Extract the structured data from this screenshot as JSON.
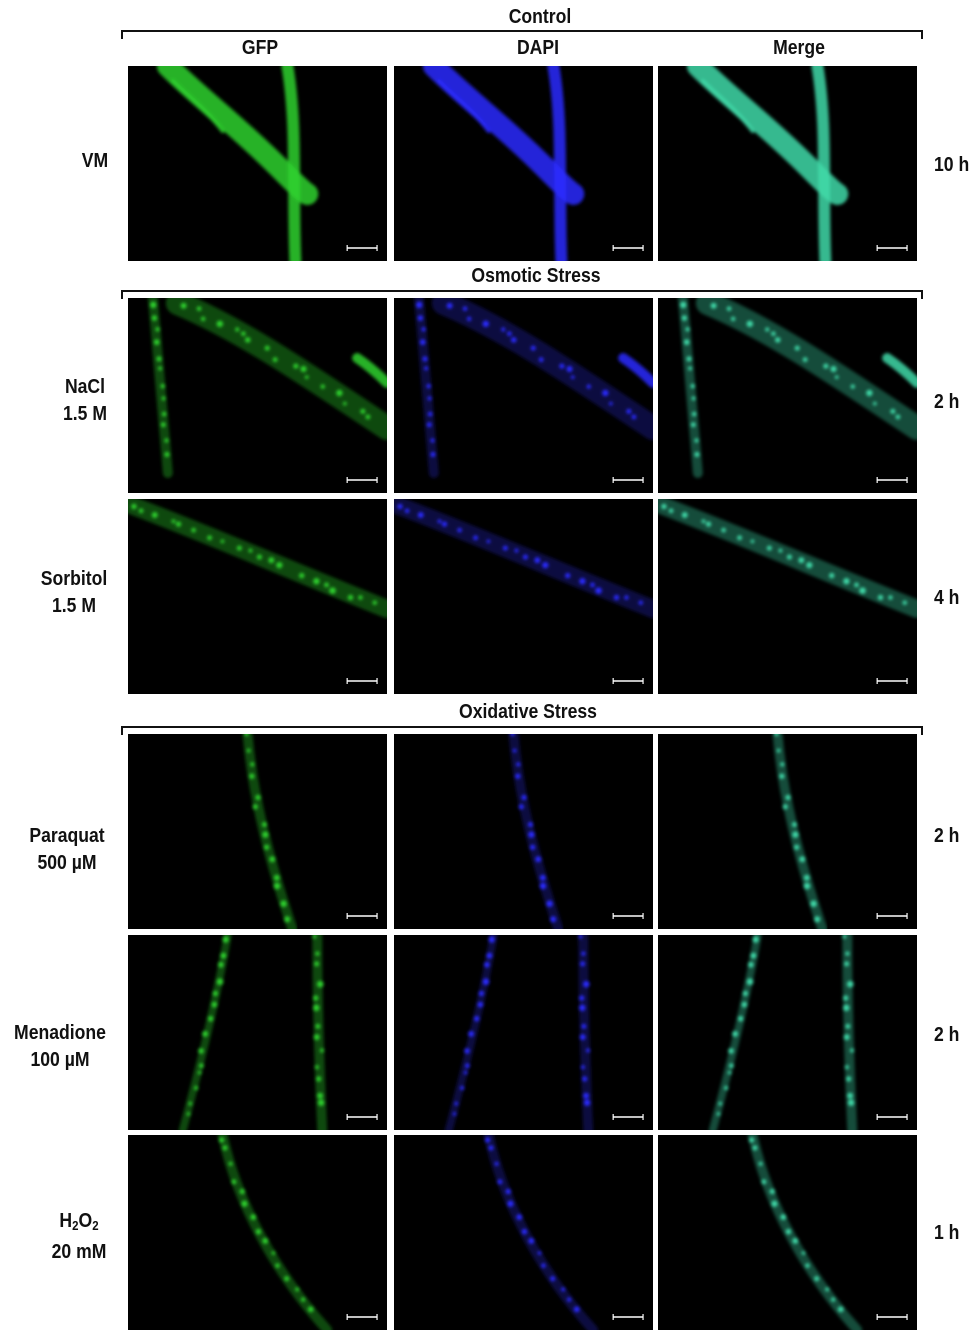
{
  "sections": {
    "control": "Control",
    "osmotic": "Osmotic Stress",
    "oxidative": "Oxidative Stress"
  },
  "columns": [
    "GFP",
    "DAPI",
    "Merge"
  ],
  "rows": [
    {
      "label_line1": "VM",
      "label_line2": "",
      "time": "10 h"
    },
    {
      "label_line1": "NaCl",
      "label_line2": "1.5 M",
      "time": "2 h"
    },
    {
      "label_line1": "Sorbitol",
      "label_line2": "1.5 M",
      "time": "4 h"
    },
    {
      "label_line1": "Paraquat",
      "label_line2": "500 µM",
      "time": "2 h"
    },
    {
      "label_line1": "Menadione",
      "label_line2": "100 µM",
      "time": "2 h"
    },
    {
      "label_line1": "H",
      "label_sub1": "2",
      "label_mid": "O",
      "label_sub2": "2",
      "label_line2": "20 mM",
      "time": "1 h"
    }
  ],
  "channel_colors": {
    "GFP": "#2fd12f",
    "DAPI": "#2a2aff",
    "Merge": "#3fd9a8"
  }
}
